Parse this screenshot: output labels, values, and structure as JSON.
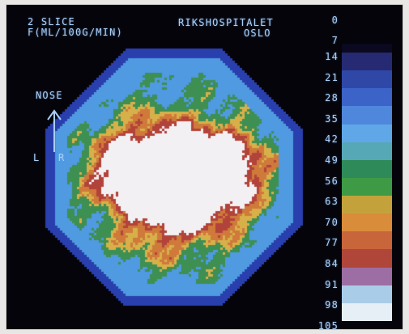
{
  "header": {
    "slice": "2 SLICE",
    "units": "F(ML/100G/MIN)",
    "institution": "RIKSHOSPITALET",
    "city": "OSLO"
  },
  "orientation": {
    "label": "NOSE",
    "left": "L",
    "right": "R"
  },
  "scale": {
    "labels": [
      "0",
      "7",
      "14",
      "21",
      "28",
      "35",
      "42",
      "49",
      "56",
      "63",
      "70",
      "77",
      "84",
      "91",
      "98",
      "105"
    ],
    "colors": [
      "#0a0920",
      "#262a72",
      "#2f48a8",
      "#3b63c8",
      "#4f87dc",
      "#5fa7e6",
      "#57a8b7",
      "#2f8a5a",
      "#3f9a45",
      "#c3a23c",
      "#d98c3a",
      "#c9653a",
      "#b0463a",
      "#9d6ea3",
      "#a9cde8",
      "#e6eef6"
    ]
  },
  "image_colors": {
    "background": "#05040a",
    "halo": "#2a3fae",
    "cortex": "#4f9ae0",
    "gray": "#3e8f52",
    "yellow": "#d7b04a",
    "orange": "#cf7a3a",
    "red": "#b2433a",
    "white": "#f2f0f2"
  }
}
